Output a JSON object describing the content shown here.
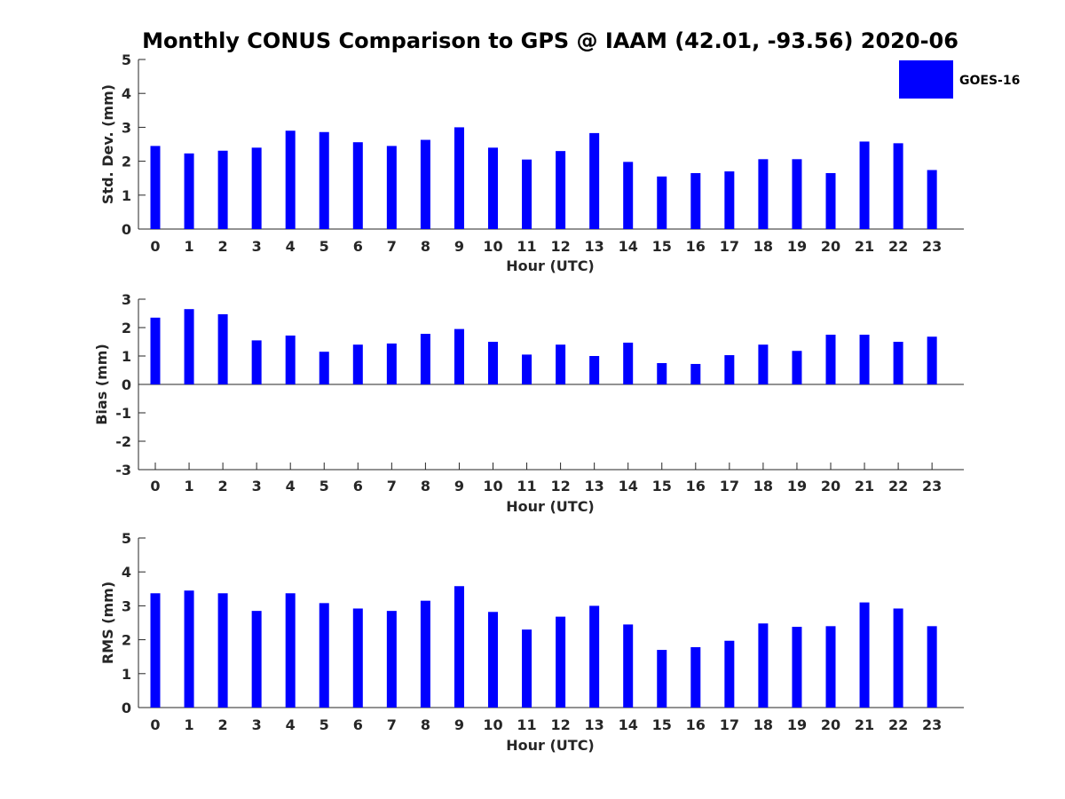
{
  "figure": {
    "title": "Monthly CONUS Comparison to GPS @ IAAM (42.01, -93.56) 2020-06",
    "legend": {
      "label": "GOES-16",
      "color": "#0000ff",
      "placement": "top-right"
    }
  },
  "chart_data": [
    {
      "type": "bar",
      "title": "Monthly CONUS Comparison to GPS @ IAAM (42.01, -93.56) 2020-06",
      "xlabel": "Hour (UTC)",
      "ylabel": "Std. Dev. (mm)",
      "ylim": [
        0,
        5
      ],
      "yticks": [
        0,
        1,
        2,
        3,
        4,
        5
      ],
      "categories": [
        "0",
        "1",
        "2",
        "3",
        "4",
        "5",
        "6",
        "7",
        "8",
        "9",
        "10",
        "11",
        "12",
        "13",
        "14",
        "15",
        "16",
        "17",
        "18",
        "19",
        "20",
        "21",
        "22",
        "23"
      ],
      "series": [
        {
          "name": "GOES-16",
          "color": "#0000ff",
          "values": [
            2.45,
            2.23,
            2.31,
            2.4,
            2.9,
            2.86,
            2.56,
            2.45,
            2.63,
            3.0,
            2.4,
            2.05,
            2.3,
            2.83,
            1.98,
            1.55,
            1.65,
            1.7,
            2.06,
            2.06,
            1.65,
            2.58,
            2.53,
            1.74
          ]
        }
      ]
    },
    {
      "type": "bar",
      "xlabel": "Hour (UTC)",
      "ylabel": "Bias (mm)",
      "ylim": [
        -3,
        3
      ],
      "yticks": [
        -3,
        -2,
        -1,
        0,
        1,
        2,
        3
      ],
      "categories": [
        "0",
        "1",
        "2",
        "3",
        "4",
        "5",
        "6",
        "7",
        "8",
        "9",
        "10",
        "11",
        "12",
        "13",
        "14",
        "15",
        "16",
        "17",
        "18",
        "19",
        "20",
        "21",
        "22",
        "23"
      ],
      "series": [
        {
          "name": "GOES-16",
          "color": "#0000ff",
          "values": [
            2.35,
            2.65,
            2.47,
            1.55,
            1.72,
            1.15,
            1.4,
            1.44,
            1.78,
            1.95,
            1.5,
            1.05,
            1.4,
            1.0,
            1.47,
            0.75,
            0.72,
            1.03,
            1.4,
            1.18,
            1.75,
            1.75,
            1.5,
            1.68
          ]
        }
      ]
    },
    {
      "type": "bar",
      "xlabel": "Hour (UTC)",
      "ylabel": "RMS (mm)",
      "ylim": [
        0,
        5
      ],
      "yticks": [
        0,
        1,
        2,
        3,
        4,
        5
      ],
      "categories": [
        "0",
        "1",
        "2",
        "3",
        "4",
        "5",
        "6",
        "7",
        "8",
        "9",
        "10",
        "11",
        "12",
        "13",
        "14",
        "15",
        "16",
        "17",
        "18",
        "19",
        "20",
        "21",
        "22",
        "23"
      ],
      "series": [
        {
          "name": "GOES-16",
          "color": "#0000ff",
          "values": [
            3.37,
            3.45,
            3.37,
            2.85,
            3.37,
            3.08,
            2.92,
            2.85,
            3.15,
            3.58,
            2.82,
            2.3,
            2.68,
            3.0,
            2.45,
            1.7,
            1.78,
            1.97,
            2.48,
            2.38,
            2.4,
            3.1,
            2.92,
            2.4
          ]
        }
      ]
    }
  ]
}
